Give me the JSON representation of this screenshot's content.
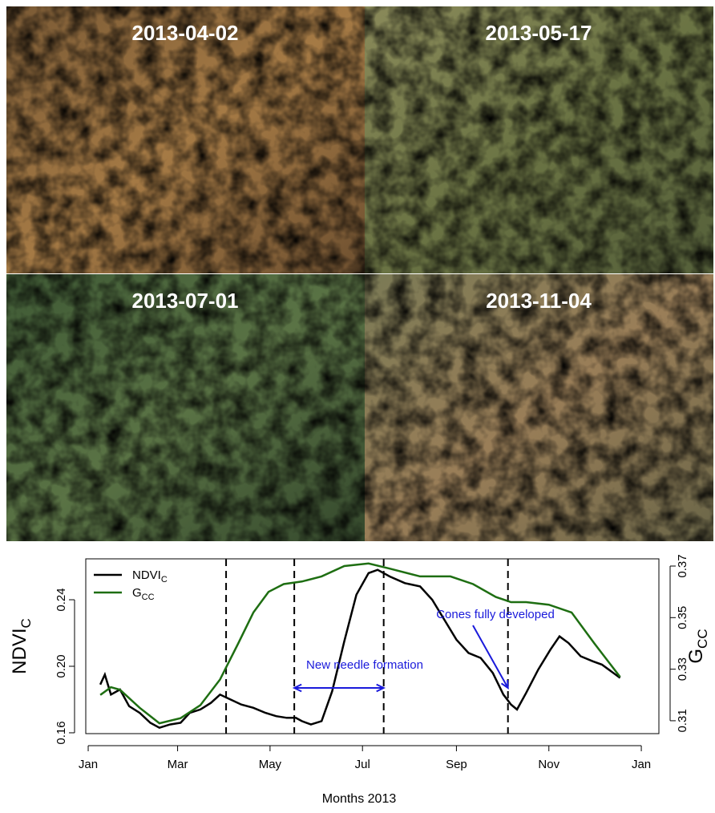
{
  "photos": [
    {
      "label": "2013-04-02"
    },
    {
      "label": "2013-05-17"
    },
    {
      "label": "2013-07-01"
    },
    {
      "label": "2013-11-04"
    }
  ],
  "chart_data": {
    "type": "line",
    "xlabel": "Months 2013",
    "ylabel": "NDVI",
    "ylabel_sub": "C",
    "y2label": "G",
    "y2label_sub": "CC",
    "xlim": [
      -0.6,
      377.6
    ],
    "xticks": [
      {
        "value": 1,
        "label": "Jan"
      },
      {
        "value": 60,
        "label": "Mar"
      },
      {
        "value": 121,
        "label": "May"
      },
      {
        "value": 182,
        "label": "Jul"
      },
      {
        "value": 244,
        "label": "Sep"
      },
      {
        "value": 305,
        "label": "Nov"
      },
      {
        "value": 366,
        "label": "Jan"
      }
    ],
    "ylim": [
      0.1595,
      0.2646
    ],
    "yticks": [
      0.16,
      {
        "value": 0.2,
        "label": "0.20"
      },
      0.24
    ],
    "y2lim": [
      0.305,
      0.3728
    ],
    "y2ticks": [
      0.31,
      0.33,
      0.35,
      0.37
    ],
    "vlines": [
      92,
      137,
      196,
      278
    ],
    "annotations": [
      "New needle formation",
      "Cones fully developed"
    ],
    "legend": "top-left",
    "series": [
      {
        "name": "NDVI",
        "subscript": "C",
        "color": "#000000",
        "x": [
          9,
          12,
          16,
          22,
          28,
          35,
          42,
          48,
          55,
          62,
          68,
          75,
          82,
          88,
          95,
          102,
          110,
          118,
          125,
          132,
          138,
          142,
          148,
          155,
          162,
          170,
          178,
          186,
          192,
          200,
          210,
          220,
          228,
          236,
          244,
          252,
          260,
          268,
          275,
          280,
          284,
          290,
          298,
          306,
          312,
          318,
          326,
          334,
          340,
          346,
          352
        ],
        "values": [
          0.189,
          0.195,
          0.183,
          0.186,
          0.176,
          0.172,
          0.166,
          0.163,
          0.165,
          0.166,
          0.172,
          0.174,
          0.178,
          0.183,
          0.18,
          0.177,
          0.175,
          0.172,
          0.17,
          0.169,
          0.169,
          0.167,
          0.165,
          0.167,
          0.185,
          0.215,
          0.243,
          0.256,
          0.258,
          0.254,
          0.25,
          0.248,
          0.24,
          0.228,
          0.216,
          0.208,
          0.205,
          0.196,
          0.183,
          0.177,
          0.174,
          0.184,
          0.198,
          0.21,
          0.218,
          0.214,
          0.206,
          0.203,
          0.201,
          0.197,
          0.193
        ]
      },
      {
        "name": "G",
        "subscript": "CC",
        "color": "#1e6e12",
        "axis": "y2",
        "x": [
          9,
          16,
          22,
          35,
          48,
          62,
          75,
          88,
          100,
          110,
          120,
          130,
          142,
          155,
          170,
          186,
          200,
          220,
          240,
          255,
          270,
          280,
          290,
          305,
          320,
          335,
          352
        ],
        "values": [
          0.32,
          0.323,
          0.322,
          0.315,
          0.309,
          0.311,
          0.316,
          0.326,
          0.34,
          0.352,
          0.36,
          0.363,
          0.364,
          0.366,
          0.37,
          0.371,
          0.369,
          0.366,
          0.366,
          0.363,
          0.358,
          0.356,
          0.356,
          0.355,
          0.352,
          0.34,
          0.327
        ]
      }
    ]
  }
}
